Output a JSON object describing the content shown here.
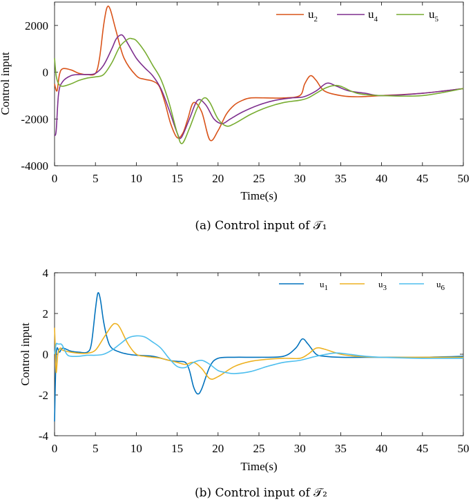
{
  "chart_data": [
    {
      "type": "line",
      "caption": "(a) Control input of 𝒯₁",
      "xlabel": "Time(s)",
      "ylabel": "Control input",
      "xlim": [
        0,
        50
      ],
      "ylim": [
        -4000,
        3000
      ],
      "xticks": [
        0,
        5,
        10,
        15,
        20,
        25,
        30,
        35,
        40,
        45,
        50
      ],
      "yticks": [
        -4000,
        -2000,
        0,
        2000
      ],
      "legend_position": "top-right",
      "series": [
        {
          "name": "u₂",
          "color": "#d95319",
          "x": [
            0,
            0.3,
            0.6,
            1,
            2,
            3,
            4,
            5,
            5.5,
            6,
            6.4,
            6.8,
            7.5,
            8.5,
            10,
            11,
            12,
            12.8,
            13.5,
            14.2,
            15,
            15.7,
            16.3,
            17,
            18,
            19,
            20,
            21,
            22,
            23,
            24,
            26,
            28,
            30,
            30.6,
            31.3,
            32,
            33,
            35,
            37,
            40,
            45,
            50
          ],
          "y": [
            -500,
            -800,
            -100,
            150,
            100,
            -50,
            -100,
            -50,
            600,
            2000,
            2750,
            2700,
            1800,
            600,
            -150,
            -300,
            -380,
            -600,
            -1300,
            -2200,
            -2800,
            -2600,
            -2000,
            -1300,
            -1700,
            -2900,
            -2500,
            -1800,
            -1400,
            -1200,
            -1100,
            -1100,
            -1100,
            -1000,
            -500,
            -150,
            -350,
            -800,
            -1000,
            -1050,
            -1000,
            -900,
            -700
          ]
        },
        {
          "name": "u₄",
          "color": "#7e2f8e",
          "x": [
            0,
            0.2,
            0.5,
            1,
            2,
            3,
            4,
            5,
            6,
            7,
            7.5,
            8,
            8.4,
            9,
            10,
            11,
            12,
            13,
            14,
            15,
            15.5,
            16.5,
            17.5,
            18.5,
            19.5,
            20.5,
            21.5,
            23,
            25,
            27,
            29,
            30.5,
            32,
            33.3,
            34.5,
            36,
            38,
            40,
            45,
            50
          ],
          "y": [
            -2700,
            -2500,
            -900,
            -400,
            -150,
            -100,
            -100,
            -50,
            300,
            1000,
            1400,
            1580,
            1550,
            1200,
            600,
            200,
            -150,
            -700,
            -1600,
            -2600,
            -2800,
            -2000,
            -1200,
            -1400,
            -2000,
            -2200,
            -2000,
            -1700,
            -1400,
            -1200,
            -1100,
            -1050,
            -800,
            -470,
            -600,
            -800,
            -900,
            -1000,
            -900,
            -700
          ]
        },
        {
          "name": "u₅",
          "color": "#77ac30",
          "x": [
            0,
            0.2,
            0.5,
            1,
            2,
            3,
            4,
            5,
            6,
            7,
            8,
            9,
            9.5,
            10,
            11,
            12,
            13,
            14,
            15,
            15.6,
            16.5,
            17.5,
            18.3,
            19,
            20,
            21,
            22,
            24,
            26,
            28,
            30,
            31,
            32,
            33,
            34,
            35,
            37,
            40,
            45,
            50
          ],
          "y": [
            600,
            -150,
            -500,
            -600,
            -500,
            -350,
            -250,
            -200,
            -100,
            400,
            1100,
            1420,
            1430,
            1350,
            900,
            300,
            -300,
            -1300,
            -2600,
            -3050,
            -2400,
            -1500,
            -1100,
            -1300,
            -2000,
            -2300,
            -2200,
            -1800,
            -1500,
            -1300,
            -1200,
            -1100,
            -900,
            -700,
            -580,
            -600,
            -900,
            -1000,
            -1000,
            -700
          ]
        }
      ]
    },
    {
      "type": "line",
      "caption": "(b) Control input of 𝒯₂",
      "xlabel": "Time(s)",
      "ylabel": "Control input",
      "xlim": [
        0,
        50
      ],
      "ylim": [
        -4,
        4
      ],
      "xticks": [
        0,
        5,
        10,
        15,
        20,
        25,
        30,
        35,
        40,
        45,
        50
      ],
      "yticks": [
        -4,
        -2,
        0,
        2,
        4
      ],
      "legend_position": "top-right",
      "series": [
        {
          "name": "u₁",
          "color": "#0072bd",
          "x": [
            0,
            0.15,
            0.3,
            0.6,
            1,
            2,
            3,
            4,
            4.5,
            5,
            5.3,
            5.6,
            6,
            6.5,
            7,
            8,
            9,
            10,
            12,
            14,
            15,
            16,
            16.5,
            17,
            17.5,
            18,
            19,
            20,
            22,
            25,
            28,
            29.5,
            30.3,
            31,
            32,
            33,
            35,
            40,
            45,
            50
          ],
          "y": [
            -3.3,
            -0.5,
            0.3,
            0.1,
            0.3,
            0.15,
            0.1,
            0.1,
            0.5,
            2.2,
            3.0,
            2.7,
            1.6,
            0.7,
            0.3,
            0.1,
            0.0,
            -0.05,
            -0.1,
            -0.3,
            -0.35,
            -0.4,
            -0.8,
            -1.6,
            -1.95,
            -1.7,
            -0.6,
            -0.2,
            -0.15,
            -0.15,
            -0.1,
            0.3,
            0.75,
            0.5,
            0.0,
            -0.1,
            -0.15,
            -0.15,
            -0.15,
            -0.1
          ]
        },
        {
          "name": "u₃",
          "color": "#edb120",
          "x": [
            0,
            0.1,
            0.2,
            0.4,
            0.7,
            1,
            2,
            3,
            4,
            5,
            6,
            7,
            7.5,
            8,
            9,
            10,
            11,
            12,
            13,
            14,
            15,
            16,
            17,
            18,
            19,
            20,
            22,
            24,
            26,
            28,
            30,
            31,
            32,
            33,
            35,
            37,
            40,
            45,
            50
          ],
          "y": [
            1.3,
            0.2,
            -0.9,
            0.0,
            0.3,
            0.2,
            0.1,
            0.05,
            0.05,
            0.2,
            0.8,
            1.4,
            1.5,
            1.3,
            0.5,
            0.0,
            -0.1,
            -0.15,
            -0.2,
            -0.3,
            -0.4,
            -0.5,
            -0.4,
            -0.7,
            -1.2,
            -1.1,
            -0.6,
            -0.35,
            -0.25,
            -0.2,
            -0.2,
            0.0,
            0.3,
            0.25,
            0.0,
            -0.1,
            -0.15,
            -0.15,
            -0.15
          ]
        },
        {
          "name": "u₆",
          "color": "#4dbeee",
          "x": [
            0,
            0.2,
            0.4,
            0.6,
            0.8,
            1,
            1.5,
            2,
            3,
            4,
            5,
            6,
            7,
            8,
            9,
            10,
            11,
            12,
            13,
            14,
            15,
            16,
            17,
            18,
            19,
            20,
            21,
            22,
            24,
            26,
            28,
            30,
            32,
            34,
            35,
            36,
            38,
            40,
            45,
            50
          ],
          "y": [
            0.0,
            0.5,
            0.5,
            0.5,
            0.5,
            0.4,
            0.0,
            -0.1,
            -0.1,
            -0.05,
            -0.05,
            0.0,
            0.2,
            0.5,
            0.8,
            0.9,
            0.85,
            0.6,
            0.3,
            -0.2,
            -0.6,
            -0.65,
            -0.4,
            -0.3,
            -0.5,
            -0.8,
            -0.9,
            -0.95,
            -0.85,
            -0.6,
            -0.4,
            -0.3,
            -0.1,
            0.05,
            0.05,
            0.0,
            -0.1,
            -0.15,
            -0.2,
            -0.2
          ]
        }
      ]
    }
  ]
}
